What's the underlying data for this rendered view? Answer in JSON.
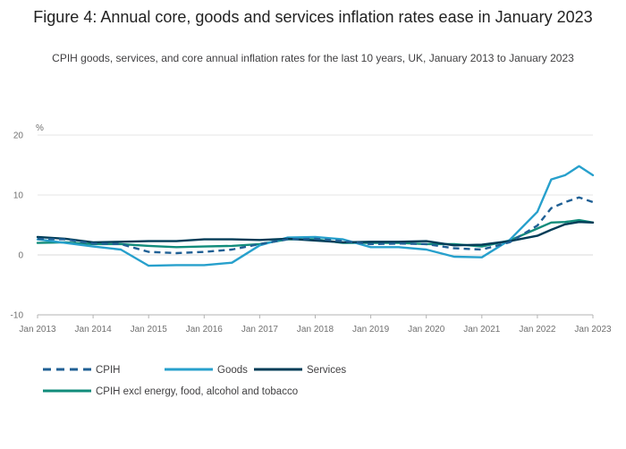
{
  "header": {
    "title": "Figure 4: Annual core, goods and services inflation rates ease in January 2023",
    "subtitle": "CPIH goods, services, and core annual inflation rates for the last 10 years, UK, January 2013 to January 2023"
  },
  "chart_data": {
    "type": "line",
    "ylabel": "%",
    "ylim": [
      -10,
      20
    ],
    "yticks": [
      "20",
      "10",
      "0",
      "-10"
    ],
    "yticks_values": [
      20,
      10,
      0,
      -10
    ],
    "xticks": [
      "Jan 2013",
      "Jan 2014",
      "Jan 2015",
      "Jan 2016",
      "Jan 2017",
      "Jan 2018",
      "Jan 2019",
      "Jan 2020",
      "Jan 2021",
      "Jan 2022",
      "Jan 2023"
    ],
    "x_start": "2013-01",
    "x_end": "2023-01",
    "grid": true,
    "legend_position": "bottom",
    "series": [
      {
        "name": "CPIH",
        "color": "#206095",
        "dash": true,
        "points": [
          [
            "2013-01",
            2.7
          ],
          [
            "2013-07",
            2.6
          ],
          [
            "2014-01",
            1.9
          ],
          [
            "2014-07",
            1.8
          ],
          [
            "2015-01",
            0.5
          ],
          [
            "2015-07",
            0.3
          ],
          [
            "2016-01",
            0.5
          ],
          [
            "2016-07",
            0.9
          ],
          [
            "2017-01",
            1.8
          ],
          [
            "2017-07",
            2.6
          ],
          [
            "2018-01",
            2.7
          ],
          [
            "2018-07",
            2.3
          ],
          [
            "2019-01",
            1.8
          ],
          [
            "2019-07",
            1.9
          ],
          [
            "2020-01",
            1.8
          ],
          [
            "2020-07",
            1.1
          ],
          [
            "2021-01",
            0.9
          ],
          [
            "2021-07",
            2.1
          ],
          [
            "2022-01",
            4.9
          ],
          [
            "2022-04",
            7.8
          ],
          [
            "2022-07",
            8.8
          ],
          [
            "2022-10",
            9.6
          ],
          [
            "2023-01",
            8.8
          ]
        ]
      },
      {
        "name": "Goods",
        "color": "#27a0cc",
        "dash": false,
        "points": [
          [
            "2013-01",
            2.6
          ],
          [
            "2013-07",
            2.0
          ],
          [
            "2014-01",
            1.4
          ],
          [
            "2014-07",
            0.9
          ],
          [
            "2015-01",
            -1.8
          ],
          [
            "2015-07",
            -1.7
          ],
          [
            "2016-01",
            -1.7
          ],
          [
            "2016-07",
            -1.3
          ],
          [
            "2017-01",
            1.6
          ],
          [
            "2017-07",
            2.9
          ],
          [
            "2018-01",
            3.0
          ],
          [
            "2018-07",
            2.6
          ],
          [
            "2019-01",
            1.3
          ],
          [
            "2019-07",
            1.3
          ],
          [
            "2020-01",
            0.9
          ],
          [
            "2020-07",
            -0.3
          ],
          [
            "2021-01",
            -0.4
          ],
          [
            "2021-07",
            2.5
          ],
          [
            "2022-01",
            7.2
          ],
          [
            "2022-04",
            12.6
          ],
          [
            "2022-07",
            13.3
          ],
          [
            "2022-10",
            14.8
          ],
          [
            "2023-01",
            13.3
          ]
        ]
      },
      {
        "name": "Services",
        "color": "#003c57",
        "dash": false,
        "points": [
          [
            "2013-01",
            3.0
          ],
          [
            "2013-07",
            2.7
          ],
          [
            "2014-01",
            2.1
          ],
          [
            "2014-07",
            2.2
          ],
          [
            "2015-01",
            2.3
          ],
          [
            "2015-07",
            2.3
          ],
          [
            "2016-01",
            2.6
          ],
          [
            "2016-07",
            2.6
          ],
          [
            "2017-01",
            2.5
          ],
          [
            "2017-07",
            2.7
          ],
          [
            "2018-01",
            2.4
          ],
          [
            "2018-07",
            2.1
          ],
          [
            "2019-01",
            2.2
          ],
          [
            "2019-07",
            2.2
          ],
          [
            "2020-01",
            2.3
          ],
          [
            "2020-07",
            1.6
          ],
          [
            "2021-01",
            1.7
          ],
          [
            "2021-07",
            2.3
          ],
          [
            "2022-01",
            3.2
          ],
          [
            "2022-04",
            4.2
          ],
          [
            "2022-07",
            5.1
          ],
          [
            "2022-10",
            5.5
          ],
          [
            "2023-01",
            5.4
          ]
        ]
      },
      {
        "name": "CPIH excl energy, food, alcohol and tobacco",
        "color": "#118c7b",
        "dash": false,
        "points": [
          [
            "2013-01",
            2.0
          ],
          [
            "2013-07",
            2.1
          ],
          [
            "2014-01",
            1.8
          ],
          [
            "2014-07",
            1.8
          ],
          [
            "2015-01",
            1.5
          ],
          [
            "2015-07",
            1.3
          ],
          [
            "2016-01",
            1.4
          ],
          [
            "2016-07",
            1.5
          ],
          [
            "2017-01",
            1.8
          ],
          [
            "2017-07",
            2.6
          ],
          [
            "2018-01",
            2.6
          ],
          [
            "2018-07",
            2.0
          ],
          [
            "2019-01",
            2.0
          ],
          [
            "2019-07",
            2.0
          ],
          [
            "2020-01",
            1.8
          ],
          [
            "2020-07",
            1.8
          ],
          [
            "2021-01",
            1.4
          ],
          [
            "2021-07",
            2.4
          ],
          [
            "2022-01",
            4.4
          ],
          [
            "2022-04",
            5.4
          ],
          [
            "2022-07",
            5.5
          ],
          [
            "2022-10",
            5.8
          ],
          [
            "2023-01",
            5.4
          ]
        ]
      }
    ]
  }
}
